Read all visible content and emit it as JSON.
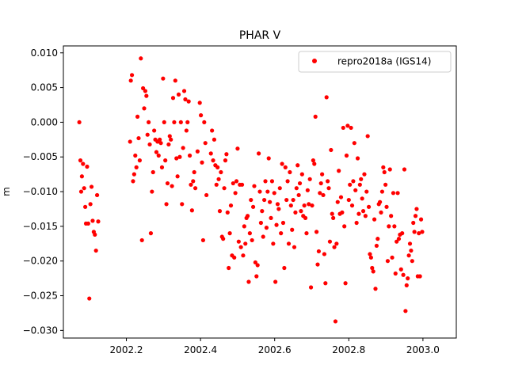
{
  "chart_data": {
    "type": "scatter",
    "title": "PHAR V",
    "xlabel": "",
    "ylabel": "m",
    "xlim": [
      2002.03,
      2003.09
    ],
    "ylim": [
      -0.0311,
      0.011
    ],
    "xticks": [
      2002.2,
      2002.4,
      2002.6,
      2002.8,
      2003.0
    ],
    "xtick_labels": [
      "2002.2",
      "2002.4",
      "2002.6",
      "2002.8",
      "2003.0"
    ],
    "yticks": [
      0.01,
      0.005,
      0.0,
      -0.005,
      -0.01,
      -0.015,
      -0.02,
      -0.025,
      -0.03
    ],
    "ytick_labels": [
      "0.010",
      "0.005",
      "0.000",
      "−0.005",
      "−0.010",
      "−0.015",
      "−0.020",
      "−0.025",
      "−0.030"
    ],
    "grid": false,
    "legend_position": "top-right",
    "series": [
      {
        "name": "repro2018a (IGS14)",
        "color": "#ff0000",
        "marker": "circle",
        "points": [
          [
            2002.073,
            0.0
          ],
          [
            2002.076,
            -0.0055
          ],
          [
            2002.078,
            -0.01
          ],
          [
            2002.08,
            -0.0078
          ],
          [
            2002.083,
            -0.006
          ],
          [
            2002.086,
            -0.0095
          ],
          [
            2002.089,
            -0.0122
          ],
          [
            2002.091,
            -0.0146
          ],
          [
            2002.094,
            -0.0064
          ],
          [
            2002.097,
            -0.0146
          ],
          [
            2002.1,
            -0.0254
          ],
          [
            2002.103,
            -0.0118
          ],
          [
            2002.106,
            -0.0093
          ],
          [
            2002.109,
            -0.0142
          ],
          [
            2002.112,
            -0.0158
          ],
          [
            2002.115,
            -0.0162
          ],
          [
            2002.118,
            -0.0185
          ],
          [
            2002.121,
            -0.0105
          ],
          [
            2002.124,
            -0.0143
          ],
          [
            2002.21,
            -0.0028
          ],
          [
            2002.212,
            0.006
          ],
          [
            2002.215,
            0.0068
          ],
          [
            2002.218,
            -0.0085
          ],
          [
            2002.221,
            -0.0075
          ],
          [
            2002.224,
            -0.0048
          ],
          [
            2002.227,
            -0.0065
          ],
          [
            2002.23,
            0.0008
          ],
          [
            2002.233,
            -0.0023
          ],
          [
            2002.236,
            -0.0055
          ],
          [
            2002.239,
            0.0092
          ],
          [
            2002.242,
            -0.017
          ],
          [
            2002.245,
            0.0049
          ],
          [
            2002.248,
            0.002
          ],
          [
            2002.251,
            0.0045
          ],
          [
            2002.254,
            0.0038
          ],
          [
            2002.257,
            -0.0018
          ],
          [
            2002.26,
            0.0
          ],
          [
            2002.263,
            -0.0032
          ],
          [
            2002.266,
            -0.016
          ],
          [
            2002.269,
            -0.01
          ],
          [
            2002.272,
            -0.0072
          ],
          [
            2002.275,
            -0.0012
          ],
          [
            2002.278,
            -0.0025
          ],
          [
            2002.281,
            -0.0043
          ],
          [
            2002.284,
            -0.0028
          ],
          [
            2002.287,
            -0.0048
          ],
          [
            2002.29,
            -0.0025
          ],
          [
            2002.293,
            -0.003
          ],
          [
            2002.296,
            -0.0065
          ],
          [
            2002.299,
            0.0063
          ],
          [
            2002.302,
            0.0
          ],
          [
            2002.305,
            -0.0055
          ],
          [
            2002.308,
            -0.0118
          ],
          [
            2002.311,
            -0.0088
          ],
          [
            2002.314,
            -0.0032
          ],
          [
            2002.317,
            -0.002
          ],
          [
            2002.32,
            -0.0025
          ],
          [
            2002.323,
            -0.0092
          ],
          [
            2002.326,
            0.0035
          ],
          [
            2002.329,
            0.0
          ],
          [
            2002.332,
            0.006
          ],
          [
            2002.335,
            -0.0052
          ],
          [
            2002.338,
            -0.0078
          ],
          [
            2002.341,
            0.004
          ],
          [
            2002.344,
            -0.005
          ],
          [
            2002.347,
            0.0
          ],
          [
            2002.35,
            -0.0118
          ],
          [
            2002.353,
            -0.0037
          ],
          [
            2002.356,
            0.0045
          ],
          [
            2002.359,
            0.0033
          ],
          [
            2002.362,
            -0.0012
          ],
          [
            2002.365,
            0.0
          ],
          [
            2002.368,
            0.003
          ],
          [
            2002.371,
            -0.0048
          ],
          [
            2002.374,
            -0.009
          ],
          [
            2002.377,
            -0.0127
          ],
          [
            2002.38,
            -0.0085
          ],
          [
            2002.383,
            -0.0072
          ],
          [
            2002.386,
            -0.0095
          ],
          [
            2002.392,
            -0.0042
          ],
          [
            2002.398,
            0.0028
          ],
          [
            2002.401,
            0.001
          ],
          [
            2002.404,
            -0.0058
          ],
          [
            2002.407,
            -0.017
          ],
          [
            2002.41,
            0.0
          ],
          [
            2002.413,
            -0.003
          ],
          [
            2002.416,
            -0.0105
          ],
          [
            2002.428,
            -0.0045
          ],
          [
            2002.431,
            -0.0012
          ],
          [
            2002.434,
            -0.0055
          ],
          [
            2002.437,
            -0.0025
          ],
          [
            2002.44,
            -0.0062
          ],
          [
            2002.443,
            -0.009
          ],
          [
            2002.446,
            -0.0065
          ],
          [
            2002.449,
            -0.0082
          ],
          [
            2002.452,
            -0.0128
          ],
          [
            2002.455,
            -0.0072
          ],
          [
            2002.458,
            -0.0165
          ],
          [
            2002.461,
            -0.0168
          ],
          [
            2002.464,
            -0.0095
          ],
          [
            2002.467,
            -0.0055
          ],
          [
            2002.47,
            -0.0046
          ],
          [
            2002.473,
            -0.013
          ],
          [
            2002.476,
            -0.021
          ],
          [
            2002.479,
            -0.016
          ],
          [
            2002.482,
            -0.012
          ],
          [
            2002.485,
            -0.0192
          ],
          [
            2002.488,
            -0.0088
          ],
          [
            2002.491,
            -0.0195
          ],
          [
            2002.494,
            -0.0102
          ],
          [
            2002.497,
            -0.0085
          ],
          [
            2002.5,
            -0.0038
          ],
          [
            2002.503,
            -0.0172
          ],
          [
            2002.506,
            -0.009
          ],
          [
            2002.509,
            -0.018
          ],
          [
            2002.512,
            -0.009
          ],
          [
            2002.515,
            -0.0192
          ],
          [
            2002.518,
            -0.015
          ],
          [
            2002.521,
            -0.0175
          ],
          [
            2002.524,
            -0.0138
          ],
          [
            2002.527,
            -0.0135
          ],
          [
            2002.53,
            -0.023
          ],
          [
            2002.533,
            -0.016
          ],
          [
            2002.536,
            -0.0112
          ],
          [
            2002.539,
            -0.017
          ],
          [
            2002.542,
            -0.0122
          ],
          [
            2002.545,
            -0.0092
          ],
          [
            2002.548,
            -0.0202
          ],
          [
            2002.551,
            -0.0222
          ],
          [
            2002.554,
            -0.0206
          ],
          [
            2002.557,
            -0.0045
          ],
          [
            2002.56,
            -0.01
          ],
          [
            2002.563,
            -0.0145
          ],
          [
            2002.566,
            -0.0128
          ],
          [
            2002.569,
            -0.0165
          ],
          [
            2002.572,
            -0.0112
          ],
          [
            2002.575,
            -0.0085
          ],
          [
            2002.578,
            -0.0152
          ],
          [
            2002.581,
            -0.01
          ],
          [
            2002.584,
            -0.0052
          ],
          [
            2002.587,
            -0.0115
          ],
          [
            2002.59,
            -0.0138
          ],
          [
            2002.593,
            -0.0085
          ],
          [
            2002.596,
            -0.0175
          ],
          [
            2002.599,
            -0.0102
          ],
          [
            2002.602,
            -0.023
          ],
          [
            2002.605,
            -0.0148
          ],
          [
            2002.608,
            -0.0118
          ],
          [
            2002.611,
            -0.0125
          ],
          [
            2002.614,
            -0.0095
          ],
          [
            2002.617,
            -0.016
          ],
          [
            2002.62,
            -0.006
          ],
          [
            2002.623,
            -0.0145
          ],
          [
            2002.626,
            -0.021
          ],
          [
            2002.629,
            -0.0065
          ],
          [
            2002.632,
            -0.0112
          ],
          [
            2002.635,
            -0.0085
          ],
          [
            2002.638,
            -0.0175
          ],
          [
            2002.641,
            -0.0072
          ],
          [
            2002.644,
            -0.012
          ],
          [
            2002.647,
            -0.0155
          ],
          [
            2002.65,
            -0.0112
          ],
          [
            2002.653,
            -0.018
          ],
          [
            2002.656,
            -0.013
          ],
          [
            2002.659,
            -0.0095
          ],
          [
            2002.662,
            -0.0062
          ],
          [
            2002.665,
            -0.0105
          ],
          [
            2002.668,
            -0.0088
          ],
          [
            2002.671,
            -0.0128
          ],
          [
            2002.674,
            -0.0075
          ],
          [
            2002.677,
            -0.0135
          ],
          [
            2002.68,
            -0.012
          ],
          [
            2002.683,
            -0.0138
          ],
          [
            2002.686,
            -0.016
          ],
          [
            2002.689,
            -0.0098
          ],
          [
            2002.692,
            -0.0118
          ],
          [
            2002.695,
            -0.0082
          ],
          [
            2002.698,
            -0.0238
          ],
          [
            2002.701,
            -0.012
          ],
          [
            2002.704,
            -0.0055
          ],
          [
            2002.707,
            -0.006
          ],
          [
            2002.71,
            0.0008
          ],
          [
            2002.713,
            -0.0158
          ],
          [
            2002.716,
            -0.0205
          ],
          [
            2002.719,
            -0.0186
          ],
          [
            2002.722,
            -0.0102
          ],
          [
            2002.725,
            -0.0088
          ],
          [
            2002.728,
            -0.0075
          ],
          [
            2002.731,
            -0.0105
          ],
          [
            2002.734,
            -0.019
          ],
          [
            2002.737,
            -0.0232
          ],
          [
            2002.74,
            0.0036
          ],
          [
            2002.743,
            -0.0085
          ],
          [
            2002.746,
            -0.0095
          ],
          [
            2002.749,
            -0.0172
          ],
          [
            2002.752,
            -0.004
          ],
          [
            2002.755,
            -0.0132
          ],
          [
            2002.758,
            -0.0138
          ],
          [
            2002.761,
            -0.018
          ],
          [
            2002.764,
            -0.0287
          ],
          [
            2002.767,
            -0.0175
          ],
          [
            2002.77,
            -0.0115
          ],
          [
            2002.773,
            -0.007
          ],
          [
            2002.776,
            -0.0132
          ],
          [
            2002.779,
            -0.0108
          ],
          [
            2002.782,
            -0.013
          ],
          [
            2002.785,
            -0.0008
          ],
          [
            2002.788,
            -0.015
          ],
          [
            2002.791,
            -0.0232
          ],
          [
            2002.794,
            -0.0048
          ],
          [
            2002.797,
            -0.0005
          ],
          [
            2002.8,
            -0.0112
          ],
          [
            2002.803,
            -0.009
          ],
          [
            2002.806,
            -0.0008
          ],
          [
            2002.809,
            -0.012
          ],
          [
            2002.812,
            -0.0085
          ],
          [
            2002.815,
            -0.003
          ],
          [
            2002.818,
            -0.0098
          ],
          [
            2002.821,
            -0.0145
          ],
          [
            2002.824,
            -0.0052
          ],
          [
            2002.827,
            -0.0132
          ],
          [
            2002.83,
            -0.009
          ],
          [
            2002.833,
            -0.0082
          ],
          [
            2002.836,
            -0.011
          ],
          [
            2002.839,
            -0.0128
          ],
          [
            2002.842,
            -0.0075
          ],
          [
            2002.845,
            -0.0135
          ],
          [
            2002.848,
            -0.01
          ],
          [
            2002.851,
            -0.002
          ],
          [
            2002.854,
            -0.0122
          ],
          [
            2002.857,
            -0.019
          ],
          [
            2002.86,
            -0.0195
          ],
          [
            2002.863,
            -0.021
          ],
          [
            2002.866,
            -0.0215
          ],
          [
            2002.869,
            -0.014
          ],
          [
            2002.872,
            -0.024
          ],
          [
            2002.875,
            -0.0178
          ],
          [
            2002.878,
            -0.0168
          ],
          [
            2002.881,
            -0.0118
          ],
          [
            2002.884,
            -0.0115
          ],
          [
            2002.887,
            -0.013
          ],
          [
            2002.89,
            -0.01
          ],
          [
            2002.893,
            -0.0065
          ],
          [
            2002.896,
            -0.0072
          ],
          [
            2002.899,
            -0.009
          ],
          [
            2002.902,
            -0.0122
          ],
          [
            2002.905,
            -0.02
          ],
          [
            2002.908,
            -0.015
          ],
          [
            2002.911,
            -0.0068
          ],
          [
            2002.914,
            -0.0135
          ],
          [
            2002.917,
            -0.0195
          ],
          [
            2002.92,
            -0.0102
          ],
          [
            2002.923,
            -0.015
          ],
          [
            2002.926,
            -0.0218
          ],
          [
            2002.929,
            -0.0172
          ],
          [
            2002.932,
            -0.0102
          ],
          [
            2002.935,
            -0.0168
          ],
          [
            2002.938,
            -0.0162
          ],
          [
            2002.941,
            -0.0212
          ],
          [
            2002.944,
            -0.016
          ],
          [
            2002.947,
            -0.022
          ],
          [
            2002.95,
            -0.0068
          ],
          [
            2002.953,
            -0.0272
          ],
          [
            2002.956,
            -0.0235
          ],
          [
            2002.959,
            -0.0225
          ],
          [
            2002.962,
            -0.0192
          ],
          [
            2002.965,
            -0.0175
          ],
          [
            2002.968,
            -0.0185
          ],
          [
            2002.971,
            -0.02
          ],
          [
            2002.974,
            -0.0145
          ],
          [
            2002.977,
            -0.0158
          ],
          [
            2002.98,
            -0.0135
          ],
          [
            2002.983,
            -0.0125
          ],
          [
            2002.986,
            -0.0222
          ],
          [
            2002.989,
            -0.016
          ],
          [
            2002.992,
            -0.0222
          ],
          [
            2002.995,
            -0.014
          ],
          [
            2002.998,
            -0.0158
          ]
        ]
      }
    ]
  }
}
